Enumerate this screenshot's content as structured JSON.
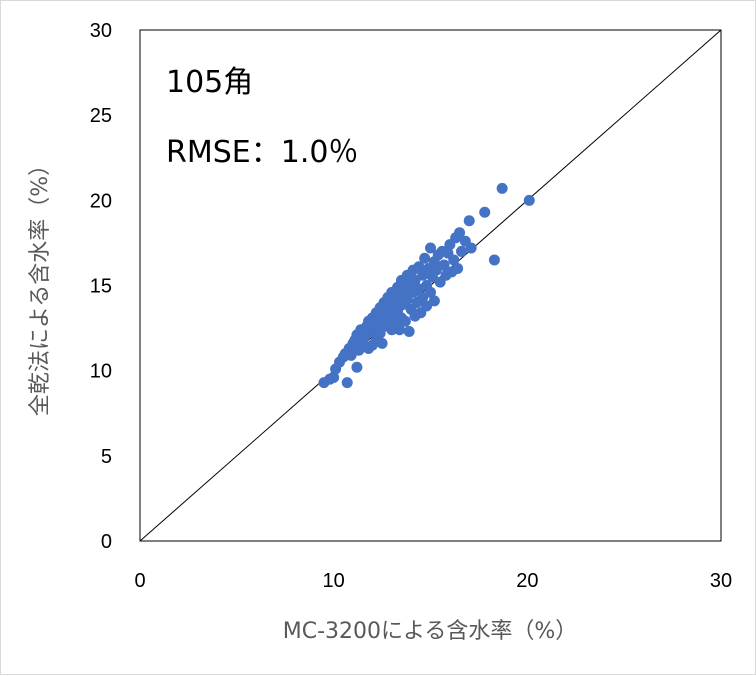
{
  "chart_data": {
    "type": "scatter",
    "title": "",
    "xlabel": "MC-3200による含水率（%）",
    "ylabel": "全乾法による含水率（%）",
    "xlim": [
      0,
      30
    ],
    "ylim": [
      0,
      30
    ],
    "x_ticks": [
      "0",
      "10",
      "20",
      "30"
    ],
    "y_ticks": [
      "0",
      "5",
      "10",
      "15",
      "20",
      "25",
      "30"
    ],
    "grid": false,
    "legend": "none",
    "reference_line": {
      "from": [
        0,
        0
      ],
      "to": [
        30,
        30
      ],
      "color": "#000000"
    },
    "annotations": [
      "105角",
      "RMSE：1.0％"
    ],
    "marker_color": "#4472c4",
    "points": [
      [
        9.5,
        9.3
      ],
      [
        9.8,
        9.5
      ],
      [
        10.0,
        9.6
      ],
      [
        10.7,
        9.3
      ],
      [
        10.1,
        10.1
      ],
      [
        10.3,
        10.5
      ],
      [
        10.5,
        10.8
      ],
      [
        10.6,
        11.0
      ],
      [
        10.8,
        11.3
      ],
      [
        10.9,
        10.9
      ],
      [
        11.0,
        11.6
      ],
      [
        11.2,
        10.2
      ],
      [
        11.1,
        11.8
      ],
      [
        11.2,
        12.1
      ],
      [
        11.3,
        11.2
      ],
      [
        11.4,
        12.4
      ],
      [
        11.5,
        11.6
      ],
      [
        11.6,
        12.0
      ],
      [
        11.7,
        12.6
      ],
      [
        11.8,
        11.3
      ],
      [
        11.8,
        12.9
      ],
      [
        11.9,
        12.3
      ],
      [
        12.0,
        13.1
      ],
      [
        12.0,
        11.5
      ],
      [
        12.1,
        12.6
      ],
      [
        12.2,
        13.4
      ],
      [
        12.2,
        11.8
      ],
      [
        12.3,
        12.9
      ],
      [
        12.4,
        13.7
      ],
      [
        12.4,
        12.2
      ],
      [
        12.5,
        13.2
      ],
      [
        12.5,
        11.6
      ],
      [
        12.6,
        14.0
      ],
      [
        12.6,
        12.6
      ],
      [
        12.7,
        13.5
      ],
      [
        12.8,
        14.3
      ],
      [
        12.8,
        12.9
      ],
      [
        12.9,
        13.8
      ],
      [
        13.0,
        12.4
      ],
      [
        13.0,
        14.6
      ],
      [
        13.1,
        13.2
      ],
      [
        13.2,
        14.1
      ],
      [
        13.2,
        12.7
      ],
      [
        13.3,
        14.9
      ],
      [
        13.3,
        13.5
      ],
      [
        13.4,
        12.4
      ],
      [
        13.4,
        14.4
      ],
      [
        13.5,
        15.3
      ],
      [
        13.5,
        13.1
      ],
      [
        13.6,
        13.9
      ],
      [
        13.7,
        14.8
      ],
      [
        13.7,
        12.9
      ],
      [
        13.8,
        15.6
      ],
      [
        13.8,
        14.2
      ],
      [
        13.9,
        12.3
      ],
      [
        13.9,
        15.1
      ],
      [
        14.0,
        13.6
      ],
      [
        14.1,
        14.6
      ],
      [
        14.1,
        15.9
      ],
      [
        14.2,
        13.2
      ],
      [
        14.2,
        15.3
      ],
      [
        14.3,
        14.0
      ],
      [
        14.4,
        16.1
      ],
      [
        14.4,
        14.8
      ],
      [
        14.5,
        13.4
      ],
      [
        14.6,
        15.6
      ],
      [
        14.6,
        14.3
      ],
      [
        14.7,
        16.6
      ],
      [
        14.8,
        15.0
      ],
      [
        14.8,
        13.8
      ],
      [
        14.9,
        16.0
      ],
      [
        15.0,
        14.6
      ],
      [
        15.0,
        17.2
      ],
      [
        15.1,
        15.5
      ],
      [
        15.2,
        16.4
      ],
      [
        15.2,
        14.1
      ],
      [
        15.3,
        15.9
      ],
      [
        15.4,
        16.8
      ],
      [
        15.5,
        15.2
      ],
      [
        15.6,
        17.0
      ],
      [
        15.7,
        16.2
      ],
      [
        15.8,
        15.6
      ],
      [
        15.9,
        16.9
      ],
      [
        16.0,
        17.4
      ],
      [
        16.1,
        15.8
      ],
      [
        16.2,
        16.5
      ],
      [
        16.3,
        17.8
      ],
      [
        16.4,
        16.0
      ],
      [
        16.5,
        18.1
      ],
      [
        16.6,
        17.0
      ],
      [
        16.8,
        17.6
      ],
      [
        17.0,
        18.8
      ],
      [
        17.1,
        17.2
      ],
      [
        17.8,
        19.3
      ],
      [
        18.3,
        16.5
      ],
      [
        18.7,
        20.7
      ],
      [
        20.1,
        20.0
      ],
      [
        13.0,
        14.2
      ],
      [
        13.4,
        14.0
      ],
      [
        12.8,
        13.4
      ],
      [
        14.0,
        15.0
      ],
      [
        11.9,
        12.7
      ]
    ]
  }
}
